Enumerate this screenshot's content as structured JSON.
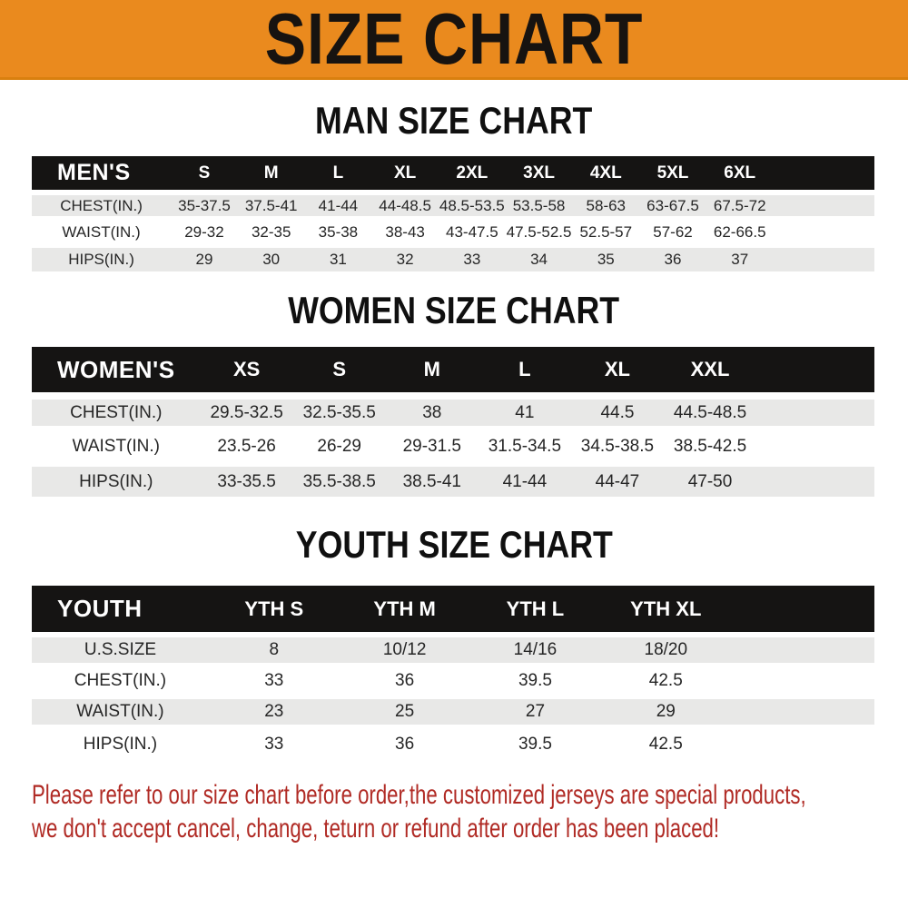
{
  "banner": {
    "title": "SIZE CHART"
  },
  "sections": [
    {
      "id": "men",
      "heading": "MAN SIZE CHART",
      "table": {
        "header_label": "MEN'S",
        "columns": [
          "S",
          "M",
          "L",
          "XL",
          "2XL",
          "3XL",
          "4XL",
          "5XL",
          "6XL"
        ],
        "rows": [
          {
            "label": "CHEST(IN.)",
            "values": [
              "35-37.5",
              "37.5-41",
              "41-44",
              "44-48.5",
              "48.5-53.5",
              "53.5-58",
              "58-63",
              "63-67.5",
              "67.5-72"
            ]
          },
          {
            "label": "WAIST(IN.)",
            "values": [
              "29-32",
              "32-35",
              "35-38",
              "38-43",
              "43-47.5",
              "47.5-52.5",
              "52.5-57",
              "57-62",
              "62-66.5"
            ]
          },
          {
            "label": "HIPS(IN.)",
            "values": [
              "29",
              "30",
              "31",
              "32",
              "33",
              "34",
              "35",
              "36",
              "37"
            ]
          }
        ]
      }
    },
    {
      "id": "women",
      "heading": "WOMEN SIZE CHART",
      "table": {
        "header_label": "WOMEN'S",
        "columns": [
          "XS",
          "S",
          "M",
          "L",
          "XL",
          "XXL"
        ],
        "rows": [
          {
            "label": "CHEST(IN.)",
            "values": [
              "29.5-32.5",
              "32.5-35.5",
              "38",
              "41",
              "44.5",
              "44.5-48.5"
            ]
          },
          {
            "label": "WAIST(IN.)",
            "values": [
              "23.5-26",
              "26-29",
              "29-31.5",
              "31.5-34.5",
              "34.5-38.5",
              "38.5-42.5"
            ]
          },
          {
            "label": "HIPS(IN.)",
            "values": [
              "33-35.5",
              "35.5-38.5",
              "38.5-41",
              "41-44",
              "44-47",
              "47-50"
            ]
          }
        ]
      }
    },
    {
      "id": "youth",
      "heading": "YOUTH SIZE CHART",
      "table": {
        "header_label": "YOUTH",
        "columns": [
          "YTH S",
          "YTH M",
          "YTH L",
          "YTH XL"
        ],
        "rows": [
          {
            "label": "U.S.SIZE",
            "values": [
              "8",
              "10/12",
              "14/16",
              "18/20"
            ]
          },
          {
            "label": "CHEST(IN.)",
            "values": [
              "33",
              "36",
              "39.5",
              "42.5"
            ]
          },
          {
            "label": "WAIST(IN.)",
            "values": [
              "23",
              "25",
              "27",
              "29"
            ]
          },
          {
            "label": "HIPS(IN.)",
            "values": [
              "33",
              "36",
              "39.5",
              "42.5"
            ]
          }
        ]
      }
    }
  ],
  "footer_note": {
    "lines": [
      "Please refer to our size chart before order,the customized jerseys are special products,",
      "we don't accept cancel, change, teturn or refund after order has been placed!"
    ]
  },
  "colors": {
    "banner_background": "#EA8A1E",
    "banner_text": "#171310",
    "header_bar": "#151413",
    "stripe_gray": "#E8E8E7",
    "note_red": "#B02A24"
  }
}
